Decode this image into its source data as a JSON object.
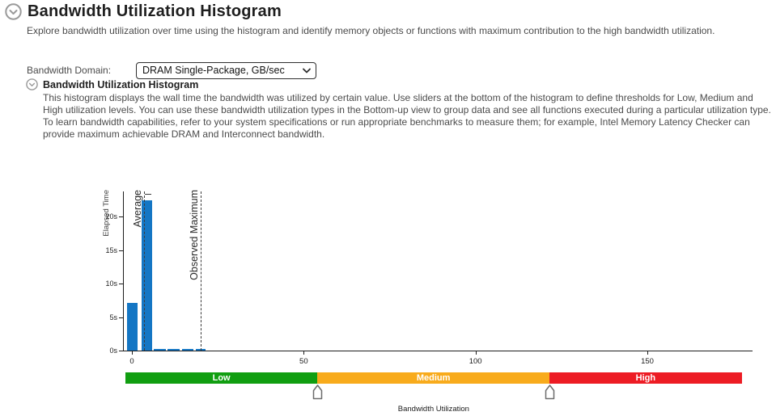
{
  "header": {
    "title": "Bandwidth Utilization Histogram",
    "description": "Explore bandwidth utilization over time using the histogram and identify memory objects or functions with maximum contribution to the high bandwidth utilization."
  },
  "domain_selector": {
    "label": "Bandwidth Domain:",
    "value": "DRAM Single-Package, GB/sec"
  },
  "section": {
    "title": "Bandwidth Utilization Histogram",
    "description": "This histogram displays the wall time the bandwidth was utilized by certain value. Use sliders at the bottom of the histogram to define thresholds for Low, Medium and High utilization levels. You can use these bandwidth utilization types in the Bottom-up view to group data and see all functions executed during a particular utilization type. To learn bandwidth capabilities, refer to your system specifications or run appropriate benchmarks to measure them; for example, Intel Memory Latency Checker can provide maximum achievable DRAM and Interconnect bandwidth."
  },
  "chart_data": {
    "type": "bar",
    "title": "Bandwidth Utilization Histogram",
    "xlabel": "Bandwidth Utilization",
    "ylabel": "Elapsed Time",
    "x_range": [
      -2.6,
      180.6
    ],
    "y_range_seconds": [
      0,
      23.7
    ],
    "grid": false,
    "x_ticks": [
      0,
      50,
      100,
      150
    ],
    "y_ticks": [
      {
        "value": 0,
        "label": "0s"
      },
      {
        "value": 5,
        "label": "5s"
      },
      {
        "value": 10,
        "label": "10s"
      },
      {
        "value": 15,
        "label": "15s"
      },
      {
        "value": 20,
        "label": "20s"
      }
    ],
    "bar_color": "#1476C4",
    "bars": [
      {
        "x0": -1.5,
        "x1": 1.6,
        "seconds": 7.1
      },
      {
        "x0": 2.8,
        "x1": 5.9,
        "seconds": 22.4
      },
      {
        "x0": 6.3,
        "x1": 9.8,
        "seconds": 0.3
      },
      {
        "x0": 10.3,
        "x1": 13.8,
        "seconds": 0.3
      },
      {
        "x0": 14.5,
        "x1": 18.0,
        "seconds": 0.3
      },
      {
        "x0": 18.5,
        "x1": 21.5,
        "seconds": 0.3
      }
    ],
    "annotations": [
      {
        "name": "average",
        "label": "Average",
        "value": 3.5,
        "cap": true
      },
      {
        "name": "observed-maximum",
        "label": "Observed Maximum",
        "value": 19.9,
        "cap": false
      }
    ],
    "thresholds": {
      "low_medium": 54,
      "medium_high": 121.5
    },
    "band_range": [
      -1.9,
      177.5
    ],
    "bands": [
      {
        "label": "Low",
        "color": "#119E11"
      },
      {
        "label": "Medium",
        "color": "#F8AB1C"
      },
      {
        "label": "High",
        "color": "#ED1C24"
      }
    ],
    "legend": "none"
  }
}
